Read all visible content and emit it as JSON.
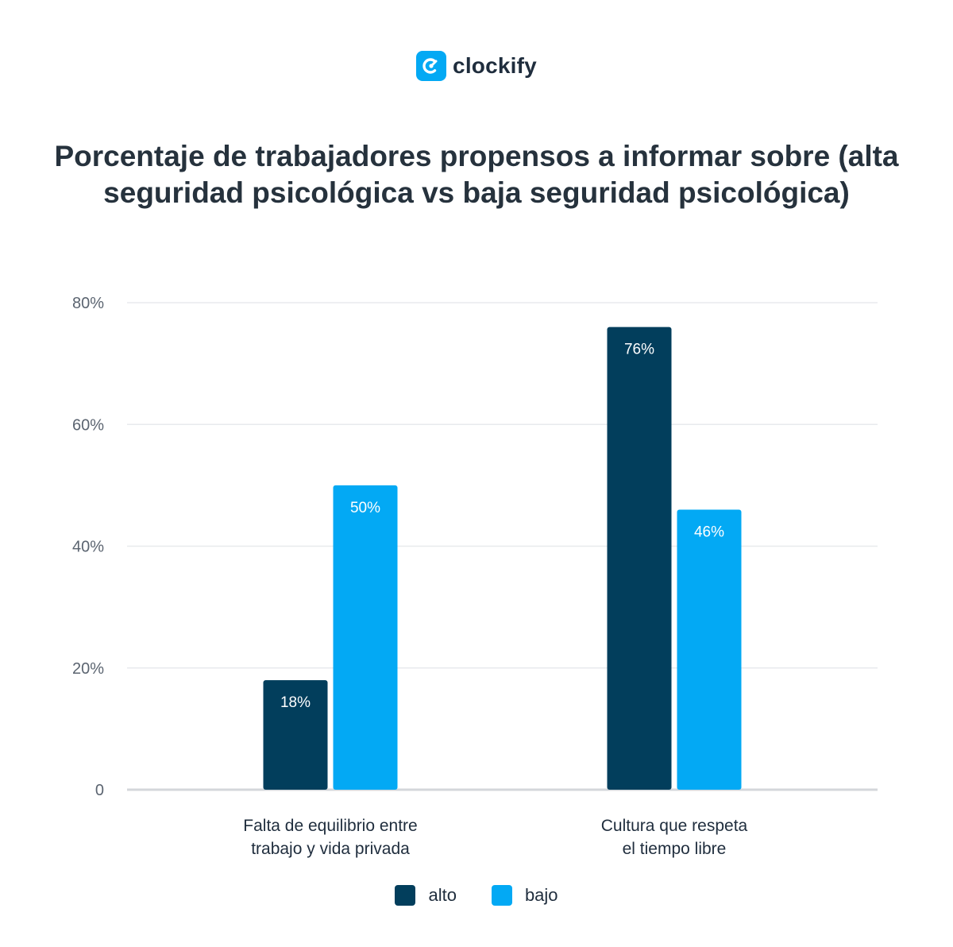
{
  "brand": {
    "name": "clockify",
    "color": "#03a9f4"
  },
  "chart_data": {
    "type": "bar",
    "title": "Porcentaje de trabajadores propensos a informar sobre (alta seguridad psicológica vs baja seguridad psicológica)",
    "categories": [
      [
        "Falta de equilibrio entre",
        "trabajo y vida privada"
      ],
      [
        "Cultura que respeta",
        "el tiempo libre"
      ]
    ],
    "series": [
      {
        "name": "alto",
        "color": "#023e5c",
        "values": [
          18,
          76
        ],
        "labels": [
          "18%",
          "76%"
        ]
      },
      {
        "name": "bajo",
        "color": "#03a9f4",
        "values": [
          50,
          46
        ],
        "labels": [
          "50%",
          "46%"
        ]
      }
    ],
    "yticks": [
      {
        "value": 0,
        "label": "0"
      },
      {
        "value": 20,
        "label": "20%"
      },
      {
        "value": 40,
        "label": "40%"
      },
      {
        "value": 60,
        "label": "60%"
      },
      {
        "value": 80,
        "label": "80%"
      }
    ],
    "ylim": [
      0,
      80
    ],
    "grid": true,
    "legend_position": "bottom"
  }
}
